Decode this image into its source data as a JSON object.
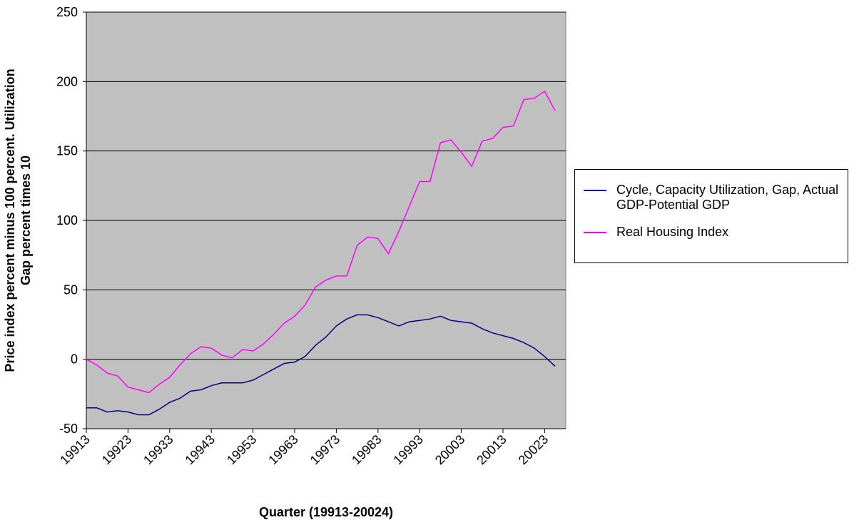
{
  "chart_data": {
    "type": "line",
    "y_label": [
      "Price index percent minus 100 percent. Utilization",
      "Gap percent times 10"
    ],
    "x_label": "Quarter (19913-20024)",
    "categories": [
      "19913",
      null,
      null,
      null,
      "19923",
      null,
      null,
      null,
      "19933",
      null,
      null,
      null,
      "19943",
      null,
      null,
      null,
      "19953",
      null,
      null,
      null,
      "19963",
      null,
      null,
      null,
      "19973",
      null,
      null,
      null,
      "19983",
      null,
      null,
      null,
      "19993",
      null,
      null,
      null,
      "20003",
      null,
      null,
      null,
      "20013",
      null,
      null,
      null,
      "20023",
      null
    ],
    "series": [
      {
        "name": "Cycle, Capacity Utilization, Gap, Actual GDP-Potential GDP",
        "color": "#000080",
        "values": [
          -35,
          -35,
          -38,
          -37,
          -38,
          -40,
          -40,
          -36,
          -31,
          -28,
          -23,
          -22,
          -19,
          -17,
          -17,
          -17,
          -15,
          -11,
          -7,
          -3,
          -2,
          2,
          10,
          16,
          24,
          29,
          32,
          32,
          30,
          27,
          24,
          27,
          28,
          29,
          31,
          28,
          27,
          26,
          22,
          19,
          17,
          15,
          12,
          8,
          2,
          -5
        ]
      },
      {
        "name": "Real Housing Index",
        "color": "#ff00ff",
        "values": [
          0,
          -4,
          -10,
          -12,
          -20,
          -22,
          -24,
          -18,
          -13,
          -4,
          4,
          9,
          8,
          3,
          1,
          7,
          6,
          11,
          18,
          26,
          31,
          39,
          52,
          57,
          60,
          60,
          82,
          88,
          87,
          76,
          92,
          110,
          128,
          128,
          156,
          158,
          149,
          139,
          157,
          159,
          167,
          168,
          187,
          188,
          193,
          179
        ]
      }
    ],
    "ylim": [
      -50,
      250
    ],
    "yticks": [
      -50,
      0,
      50,
      100,
      150,
      200,
      250
    ],
    "grid": true,
    "legend": "right"
  }
}
